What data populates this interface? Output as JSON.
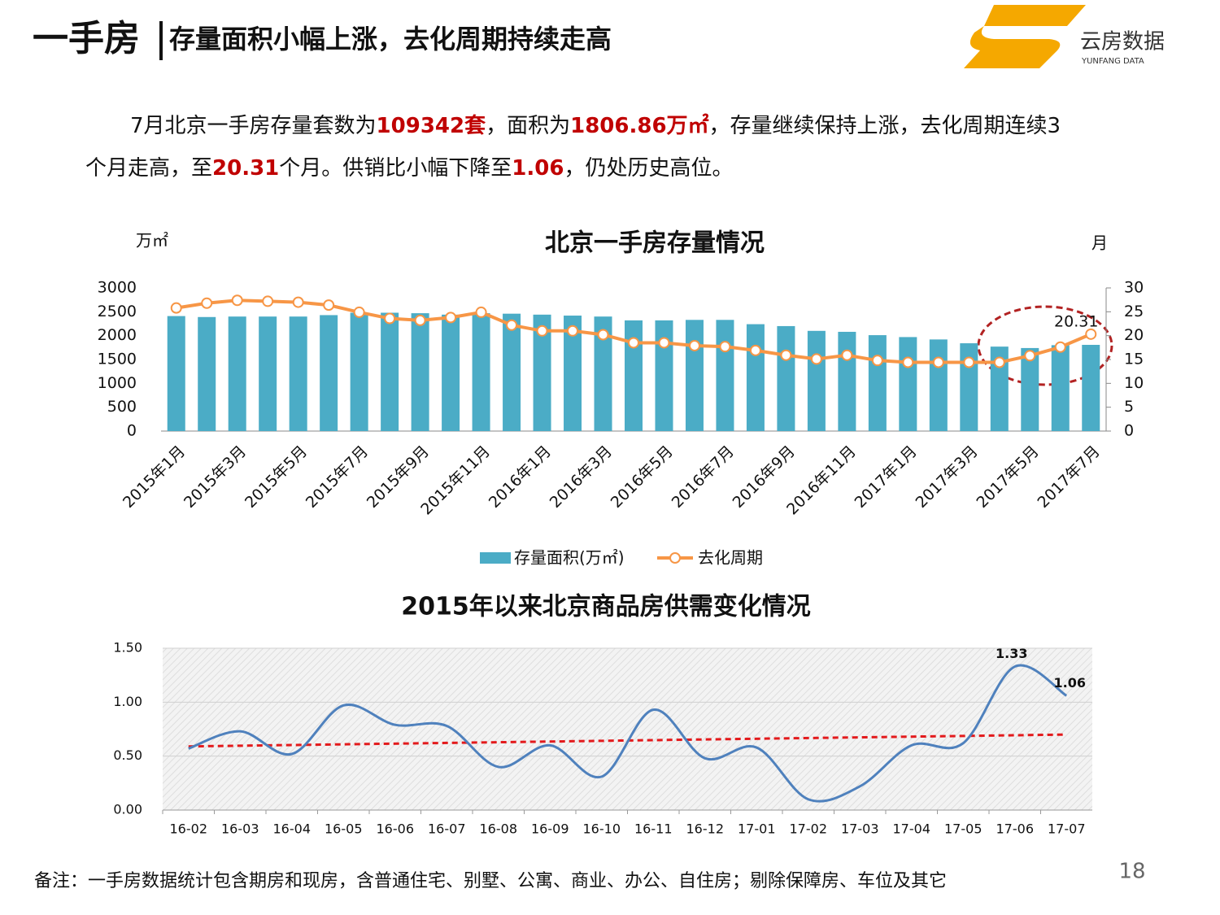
{
  "header": {
    "title_main": "一手房",
    "title_sub": "存量面积小幅上涨，去化周期持续走高",
    "logo_name": "云房数据",
    "logo_sub": "YUNFANG DATA"
  },
  "paragraph": {
    "lines": [
      [
        {
          "text": "7月北京一手房存量套数为"
        },
        {
          "text": "109342套",
          "emphasis": true
        },
        {
          "text": "，面积为"
        },
        {
          "text": "1806.86万㎡",
          "emphasis": true
        },
        {
          "text": "，存量继续保持上涨，去化周期连续3"
        }
      ],
      [
        {
          "text": "个月走高，至"
        },
        {
          "text": "20.31",
          "emphasis": true
        },
        {
          "text": "个月。供销比小幅下降至"
        },
        {
          "text": "1.06",
          "emphasis": true
        },
        {
          "text": "，仍处历史高位。"
        }
      ]
    ]
  },
  "chart_data": [
    {
      "type": "bar_line",
      "title": "北京一手房存量情况",
      "y_label": "万㎡",
      "y2_label": "月",
      "categories": [
        "2015年1月",
        null,
        "2015年3月",
        null,
        "2015年5月",
        null,
        "2015年7月",
        null,
        "2015年9月",
        null,
        "2015年11月",
        null,
        "2016年1月",
        null,
        "2016年3月",
        null,
        "2016年5月",
        null,
        "2016年7月",
        null,
        "2016年9月",
        null,
        "2016年11月",
        null,
        "2017年1月",
        null,
        "2017年3月",
        null,
        "2017年5月",
        null,
        "2017年7月"
      ],
      "series": [
        {
          "name": "存量面积(万㎡)",
          "color": "#4bacc6",
          "type": "bar",
          "values": [
            2410,
            2390,
            2400,
            2400,
            2400,
            2430,
            2480,
            2480,
            2470,
            2440,
            2470,
            2460,
            2440,
            2420,
            2400,
            2320,
            2320,
            2330,
            2330,
            2240,
            2200,
            2100,
            2080,
            2010,
            1970,
            1920,
            1840,
            1770,
            1740,
            1800,
            1806.86
          ]
        },
        {
          "name": "去化周期",
          "color": "#f79646",
          "type": "line",
          "axis": "y2",
          "values": [
            25.8,
            26.8,
            27.4,
            27.2,
            27.0,
            26.4,
            24.9,
            23.6,
            23.2,
            23.8,
            24.9,
            22.2,
            21.0,
            21.0,
            20.2,
            18.5,
            18.5,
            17.9,
            17.7,
            16.9,
            15.9,
            15.1,
            15.9,
            14.8,
            14.4,
            14.4,
            14.4,
            14.4,
            15.8,
            17.6,
            20.31
          ],
          "value_labels": [
            null,
            null,
            null,
            null,
            null,
            null,
            null,
            null,
            null,
            null,
            null,
            null,
            null,
            null,
            null,
            null,
            null,
            null,
            null,
            null,
            null,
            null,
            null,
            null,
            null,
            null,
            null,
            null,
            null,
            null,
            "20.31"
          ]
        }
      ],
      "ylim": [
        0,
        3000
      ],
      "yticks": [
        0,
        500,
        1000,
        1500,
        2000,
        2500,
        3000
      ],
      "y2lim": [
        0,
        30
      ],
      "y2ticks": [
        0,
        5,
        10,
        15,
        20,
        25,
        30
      ],
      "legend": "bottom"
    },
    {
      "type": "line",
      "title": "2015年以来北京商品房供需变化情况",
      "categories": [
        "16-02",
        "16-03",
        "16-04",
        "16-05",
        "16-06",
        "16-07",
        "16-08",
        "16-09",
        "16-10",
        "16-11",
        "16-12",
        "17-01",
        "17-02",
        "17-03",
        "17-04",
        "17-05",
        "17-06",
        "17-07"
      ],
      "values": [
        0.57,
        0.73,
        0.52,
        0.97,
        0.79,
        0.78,
        0.4,
        0.6,
        0.31,
        0.93,
        0.48,
        0.58,
        0.1,
        0.22,
        0.6,
        0.62,
        1.33,
        1.06
      ],
      "value_labels": [
        null,
        null,
        null,
        null,
        null,
        null,
        null,
        null,
        null,
        null,
        null,
        null,
        null,
        null,
        null,
        null,
        "1.33",
        "1.06"
      ],
      "color": "#4f81bd",
      "smooth": true,
      "trendline": {
        "color": "#e31a1c",
        "values": [
          0.59,
          0.7
        ]
      },
      "ylim": [
        0,
        1.5
      ],
      "yticks": [
        {
          "value": 0,
          "label": "0.00"
        },
        {
          "value": 0.5,
          "label": "0.50"
        },
        {
          "value": 1,
          "label": "1.00"
        },
        {
          "value": 1.5,
          "label": "1.50"
        }
      ]
    }
  ],
  "note": "备注：一手房数据统计包含期房和现房，含普通住宅、别墅、公寓、商业、办公、自住房；剔除保障房、车位及其它",
  "page_number": "18"
}
